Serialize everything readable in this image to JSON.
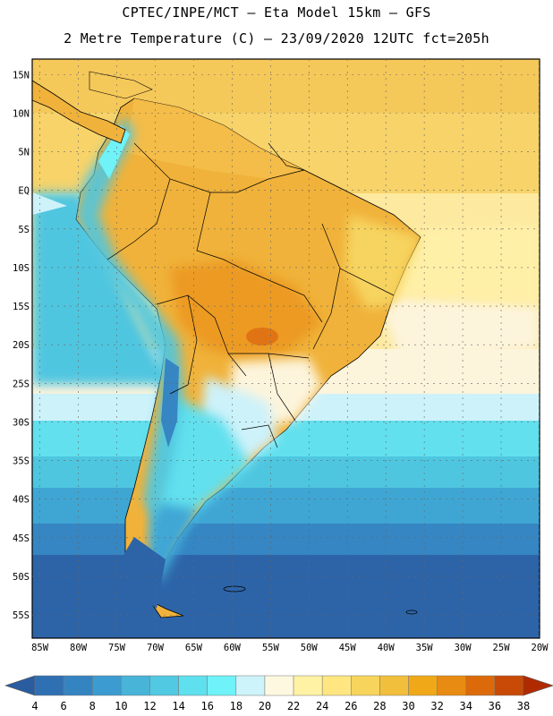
{
  "header": {
    "line1": "CPTEC/INPE/MCT –  Eta Model 15km – GFS",
    "line2": "2 Metre Temperature (C) – 23/09/2020 12UTC fct=205h"
  },
  "map": {
    "lat_labels": [
      "15N",
      "10N",
      "5N",
      "EQ",
      "5S",
      "10S",
      "15S",
      "20S",
      "25S",
      "30S",
      "35S",
      "40S",
      "45S",
      "50S",
      "55S"
    ],
    "lat_values": [
      15,
      10,
      5,
      0,
      -5,
      -10,
      -15,
      -20,
      -25,
      -30,
      -35,
      -40,
      -45,
      -50,
      -55
    ],
    "lon_labels": [
      "85W",
      "80W",
      "75W",
      "70W",
      "65W",
      "60W",
      "55W",
      "50W",
      "45W",
      "40W",
      "35W",
      "30W",
      "25W",
      "20W"
    ],
    "lon_values": [
      -85,
      -80,
      -75,
      -70,
      -65,
      -60,
      -55,
      -50,
      -45,
      -40,
      -35,
      -30,
      -25,
      -20
    ],
    "lat_range": [
      -58,
      17
    ],
    "lon_range": [
      -86,
      -20
    ],
    "grid": "dashed"
  },
  "colorbar": {
    "labels": [
      "4",
      "6",
      "8",
      "10",
      "12",
      "14",
      "16",
      "18",
      "20",
      "22",
      "24",
      "26",
      "28",
      "30",
      "32",
      "34",
      "36",
      "38"
    ],
    "colors": [
      "#2a5d9f",
      "#2f70b2",
      "#3584c2",
      "#3c9bd0",
      "#48b4d8",
      "#52c9e2",
      "#5fe0ee",
      "#6ff2f8",
      "#cdf4fb",
      "#fff8e0",
      "#fff2a4",
      "#ffe680",
      "#f7d45c",
      "#f2bf3c",
      "#f0a818",
      "#e88b12",
      "#dc6a0a",
      "#c84a06",
      "#b02a00"
    ]
  }
}
